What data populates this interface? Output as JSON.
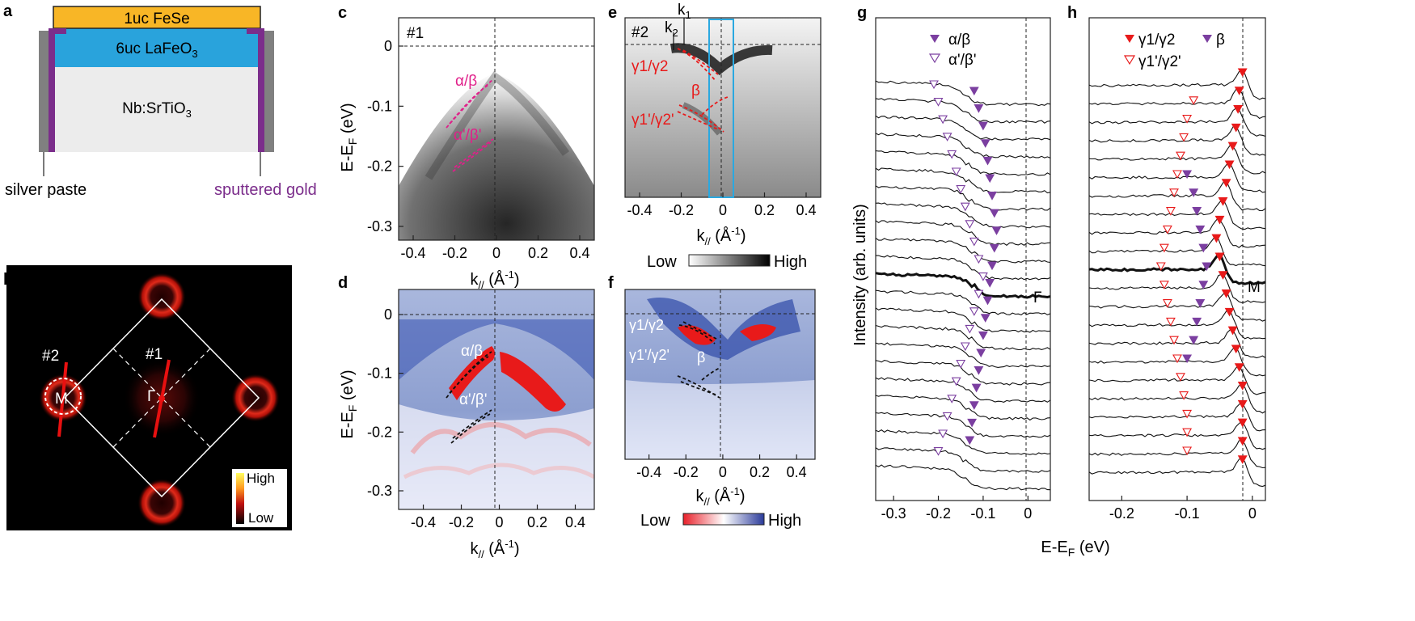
{
  "figure": {
    "panel_labels": [
      "a",
      "b",
      "c",
      "d",
      "e",
      "f",
      "g",
      "h"
    ],
    "xlabel_k": "k",
    "xlabel_k_sub": "//",
    "xlabel_k_unit": " (Å",
    "xlabel_k_exp": "-1",
    "xlabel_k_close": ")",
    "ylabel_e_main": "E-E",
    "ylabel_e_sub": "F",
    "ylabel_e_unit": " (eV)",
    "ylabel_intensity": "Intensity (arb. units)",
    "xlabel_gh_main": "E-E",
    "xlabel_gh_sub": "F",
    "xlabel_gh_unit": " (eV)"
  },
  "panel_a": {
    "fese": "1uc FeSe",
    "lafeo_main": "6uc LaFeO",
    "lafeo_sub": "3",
    "sto_main": "Nb:SrTiO",
    "sto_sub": "3",
    "silver": "silver paste",
    "gold": "sputtered gold",
    "colors": {
      "fese": "#f8b626",
      "lafeo": "#29a3dc",
      "sto": "#ececec",
      "gold": "#7b2d8b",
      "silver": "#808080"
    }
  },
  "panel_b": {
    "cut1": "#1",
    "cut2": "#2",
    "gamma": "Γ",
    "m": "M",
    "cbar_high": "High",
    "cbar_low": "Low"
  },
  "panel_c": {
    "tag": "#1",
    "label_ab": "α/β",
    "label_apbp": "α'/β'",
    "xticks": [
      "-0.4",
      "-0.2",
      "0",
      "0.2",
      "0.4"
    ],
    "yticks": [
      "0",
      "-0.1",
      "-0.2",
      "-0.3"
    ]
  },
  "panel_d": {
    "label_ab": "α/β",
    "label_apbp": "α'/β'",
    "xticks": [
      "-0.4",
      "-0.2",
      "0",
      "0.2",
      "0.4"
    ],
    "yticks": [
      "0",
      "-0.1",
      "-0.2",
      "-0.3"
    ]
  },
  "panel_e": {
    "tag": "#2",
    "k1": "k",
    "k1_sub": "1",
    "k2": "k",
    "k2_sub": "2",
    "label_g": "γ1/γ2",
    "label_b": "β",
    "label_gp": "γ1'/γ2'",
    "xticks": [
      "-0.4",
      "-0.2",
      "0",
      "0.2",
      "0.4"
    ],
    "cbar_low": "Low",
    "cbar_high": "High"
  },
  "panel_f": {
    "label_g": "γ1/γ2",
    "label_gp": "γ1'/γ2'",
    "label_b": "β",
    "xticks": [
      "-0.4",
      "-0.2",
      "0",
      "0.2",
      "0.4"
    ],
    "cbar_low": "Low",
    "cbar_high": "High"
  },
  "panel_g": {
    "legend_filled": "α/β",
    "legend_open": "α'/β'",
    "gamma": "Γ",
    "xticks": [
      "-0.3",
      "-0.2",
      "-0.1",
      "0"
    ]
  },
  "panel_h": {
    "legend_red_filled": "γ1/γ2",
    "legend_purple": "β",
    "legend_red_open": "γ1'/γ2'",
    "m": "M",
    "xticks": [
      "-0.2",
      "-0.1",
      "0"
    ]
  },
  "chart_data": [
    {
      "type": "line",
      "panel": "g",
      "title": "",
      "xlabel": "E-EF (eV)",
      "ylabel": "Intensity (arb. units)",
      "xlim": [
        -0.34,
        0.05
      ],
      "curve_count": 23,
      "highlighted_curve": "Γ",
      "series": [
        {
          "name": "α/β",
          "x": [
            -0.12,
            -0.11,
            -0.1,
            -0.095,
            -0.09,
            -0.085,
            -0.08,
            -0.075,
            -0.07,
            -0.075,
            -0.08,
            -0.085,
            -0.09,
            -0.095,
            -0.1,
            -0.105,
            -0.11,
            -0.115,
            -0.12,
            -0.125,
            -0.13
          ]
        },
        {
          "name": "α'/β'",
          "x": [
            -0.21,
            -0.2,
            -0.19,
            -0.18,
            -0.17,
            -0.16,
            -0.15,
            -0.14,
            -0.13,
            -0.12,
            -0.11,
            -0.1,
            -0.11,
            -0.12,
            -0.13,
            -0.14,
            -0.15,
            -0.16,
            -0.17,
            -0.18,
            -0.19,
            -0.2
          ]
        }
      ]
    },
    {
      "type": "line",
      "panel": "h",
      "title": "",
      "xlabel": "E-EF (eV)",
      "ylabel": "",
      "xlim": [
        -0.25,
        0.02
      ],
      "curve_count": 22,
      "highlighted_curve": "M",
      "series": [
        {
          "name": "γ1/γ2",
          "x": [
            -0.015,
            -0.02,
            -0.022,
            -0.025,
            -0.03,
            -0.035,
            -0.04,
            -0.045,
            -0.05,
            -0.055,
            -0.05,
            -0.045,
            -0.04,
            -0.035,
            -0.03,
            -0.025,
            -0.02,
            -0.015,
            -0.015,
            -0.015,
            -0.015,
            -0.015
          ]
        },
        {
          "name": "β",
          "x": [
            -0.1,
            -0.09,
            -0.085,
            -0.08,
            -0.075,
            -0.07,
            -0.075,
            -0.08,
            -0.085,
            -0.09,
            -0.1
          ]
        },
        {
          "name": "γ1'/γ2'",
          "x": [
            -0.09,
            -0.1,
            -0.105,
            -0.11,
            -0.115,
            -0.12,
            -0.125,
            -0.13,
            -0.135,
            -0.14,
            -0.135,
            -0.13,
            -0.125,
            -0.12,
            -0.115,
            -0.11,
            -0.105,
            -0.1,
            -0.1,
            -0.1
          ]
        }
      ]
    }
  ]
}
